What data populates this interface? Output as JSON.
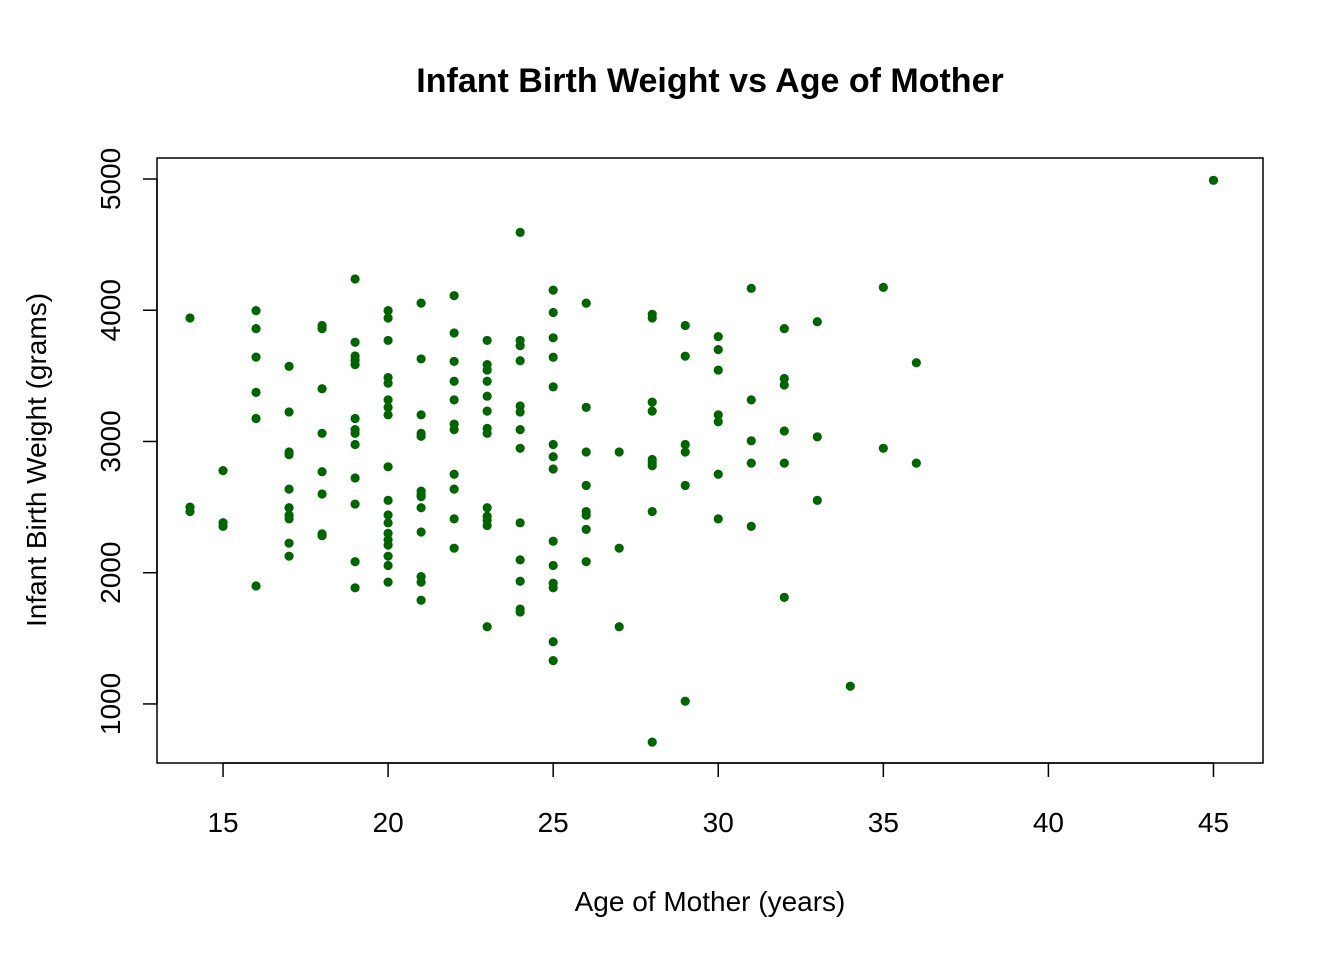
{
  "chart_data": {
    "type": "scatter",
    "title": "Infant Birth Weight vs Age of Mother",
    "xlabel": "Age of Mother (years)",
    "ylabel": "Infant Birth Weight (grams)",
    "xlim": [
      13,
      46.5
    ],
    "ylim": [
      550,
      5160
    ],
    "xticks": [
      15,
      20,
      25,
      30,
      35,
      40,
      45
    ],
    "yticks": [
      1000,
      2000,
      3000,
      4000,
      5000
    ],
    "grid": false,
    "marker_color": "#006400",
    "points": [
      [
        14,
        3941
      ],
      [
        14,
        2500
      ],
      [
        14,
        2466
      ],
      [
        15,
        2778
      ],
      [
        15,
        2381
      ],
      [
        15,
        2353
      ],
      [
        16,
        3997
      ],
      [
        16,
        3860
      ],
      [
        16,
        3643
      ],
      [
        16,
        3374
      ],
      [
        16,
        3175
      ],
      [
        16,
        1899
      ],
      [
        17,
        3572
      ],
      [
        17,
        3225
      ],
      [
        17,
        2920
      ],
      [
        17,
        2900
      ],
      [
        17,
        2637
      ],
      [
        17,
        2495
      ],
      [
        17,
        2438
      ],
      [
        17,
        2410
      ],
      [
        17,
        2225
      ],
      [
        17,
        2126
      ],
      [
        18,
        3884
      ],
      [
        18,
        3860
      ],
      [
        18,
        3402
      ],
      [
        18,
        3062
      ],
      [
        18,
        2769
      ],
      [
        18,
        2600
      ],
      [
        18,
        2296
      ],
      [
        18,
        2282
      ],
      [
        19,
        4238
      ],
      [
        19,
        3756
      ],
      [
        19,
        3651
      ],
      [
        19,
        3620
      ],
      [
        19,
        3586
      ],
      [
        19,
        3175
      ],
      [
        19,
        3090
      ],
      [
        19,
        3062
      ],
      [
        19,
        2977
      ],
      [
        19,
        2722
      ],
      [
        19,
        2523
      ],
      [
        19,
        2084
      ],
      [
        19,
        1885
      ],
      [
        20,
        3997
      ],
      [
        20,
        3941
      ],
      [
        20,
        3770
      ],
      [
        20,
        3487
      ],
      [
        20,
        3444
      ],
      [
        20,
        3317
      ],
      [
        20,
        3260
      ],
      [
        20,
        3203
      ],
      [
        20,
        2807
      ],
      [
        20,
        2551
      ],
      [
        20,
        2440
      ],
      [
        20,
        2380
      ],
      [
        20,
        2300
      ],
      [
        20,
        2250
      ],
      [
        20,
        2210
      ],
      [
        20,
        2126
      ],
      [
        20,
        2055
      ],
      [
        20,
        1928
      ],
      [
        21,
        4054
      ],
      [
        21,
        3629
      ],
      [
        21,
        3203
      ],
      [
        21,
        3062
      ],
      [
        21,
        3040
      ],
      [
        21,
        2622
      ],
      [
        21,
        2594
      ],
      [
        21,
        2580
      ],
      [
        21,
        2495
      ],
      [
        21,
        2310
      ],
      [
        21,
        1970
      ],
      [
        21,
        1928
      ],
      [
        21,
        1790
      ],
      [
        22,
        4111
      ],
      [
        22,
        3827
      ],
      [
        22,
        3610
      ],
      [
        22,
        3459
      ],
      [
        22,
        3317
      ],
      [
        22,
        3132
      ],
      [
        22,
        3090
      ],
      [
        22,
        2750
      ],
      [
        22,
        2637
      ],
      [
        22,
        2410
      ],
      [
        22,
        2187
      ],
      [
        23,
        3770
      ],
      [
        23,
        3586
      ],
      [
        23,
        3544
      ],
      [
        23,
        3459
      ],
      [
        23,
        3345
      ],
      [
        23,
        3231
      ],
      [
        23,
        3100
      ],
      [
        23,
        3062
      ],
      [
        23,
        2495
      ],
      [
        23,
        2430
      ],
      [
        23,
        2400
      ],
      [
        23,
        2360
      ],
      [
        23,
        1588
      ],
      [
        24,
        4593
      ],
      [
        24,
        3770
      ],
      [
        24,
        3730
      ],
      [
        24,
        3615
      ],
      [
        24,
        3270
      ],
      [
        24,
        3225
      ],
      [
        24,
        3090
      ],
      [
        24,
        2948
      ],
      [
        24,
        2380
      ],
      [
        24,
        2098
      ],
      [
        24,
        1935
      ],
      [
        24,
        1723
      ],
      [
        24,
        1701
      ],
      [
        25,
        4153
      ],
      [
        25,
        3983
      ],
      [
        25,
        3790
      ],
      [
        25,
        3642
      ],
      [
        25,
        3416
      ],
      [
        25,
        2977
      ],
      [
        25,
        2884
      ],
      [
        25,
        2790
      ],
      [
        25,
        2240
      ],
      [
        25,
        2055
      ],
      [
        25,
        1920
      ],
      [
        25,
        1885
      ],
      [
        25,
        1474
      ],
      [
        25,
        1330
      ],
      [
        26,
        4054
      ],
      [
        26,
        3260
      ],
      [
        26,
        2920
      ],
      [
        26,
        2665
      ],
      [
        26,
        2466
      ],
      [
        26,
        2438
      ],
      [
        26,
        2330
      ],
      [
        26,
        2084
      ],
      [
        27,
        2920
      ],
      [
        27,
        2187
      ],
      [
        27,
        1588
      ],
      [
        28,
        3969
      ],
      [
        28,
        3941
      ],
      [
        28,
        3300
      ],
      [
        28,
        3231
      ],
      [
        28,
        2863
      ],
      [
        28,
        2840
      ],
      [
        28,
        2815
      ],
      [
        28,
        2466
      ],
      [
        28,
        709
      ],
      [
        29,
        3884
      ],
      [
        29,
        3650
      ],
      [
        29,
        2977
      ],
      [
        29,
        2920
      ],
      [
        29,
        2665
      ],
      [
        29,
        1021
      ],
      [
        30,
        3799
      ],
      [
        30,
        3700
      ],
      [
        30,
        3544
      ],
      [
        30,
        3203
      ],
      [
        30,
        3150
      ],
      [
        30,
        2750
      ],
      [
        30,
        2410
      ],
      [
        31,
        4167
      ],
      [
        31,
        3317
      ],
      [
        31,
        3005
      ],
      [
        31,
        2835
      ],
      [
        31,
        2353
      ],
      [
        32,
        3860
      ],
      [
        32,
        3480
      ],
      [
        32,
        3430
      ],
      [
        32,
        3080
      ],
      [
        32,
        2835
      ],
      [
        32,
        1812
      ],
      [
        33,
        3912
      ],
      [
        33,
        3035
      ],
      [
        33,
        2551
      ],
      [
        34,
        1135
      ],
      [
        35,
        4174
      ],
      [
        35,
        2948
      ],
      [
        36,
        3600
      ],
      [
        36,
        2835
      ],
      [
        45,
        4990
      ]
    ]
  }
}
